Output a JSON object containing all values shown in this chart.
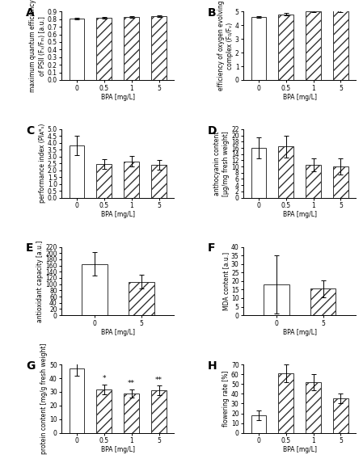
{
  "panels": {
    "A": {
      "label": "A",
      "categories": [
        "0",
        "0.5",
        "1",
        "5"
      ],
      "values": [
        0.81,
        0.82,
        0.83,
        0.84
      ],
      "errors": [
        0.01,
        0.01,
        0.01,
        0.01
      ],
      "bar_styles": [
        "white",
        "hatch",
        "hatch",
        "hatch"
      ],
      "ylim": [
        0.0,
        0.9
      ],
      "yticks": [
        0.0,
        0.1,
        0.2,
        0.3,
        0.4,
        0.5,
        0.6,
        0.7,
        0.8,
        0.9
      ],
      "yticklabels": [
        "0.0",
        "0.1",
        "0.2",
        "0.3",
        "0.4",
        "0.5",
        "0.6",
        "0.7",
        "0.8",
        "0.9"
      ],
      "ylabel": "maximum quantum efficiency\nof PSII (Fᵥ/Fₘ) [a.u.]",
      "xlabel": "BPA [mg/L]",
      "significance": [
        "",
        "",
        "",
        ""
      ]
    },
    "B": {
      "label": "B",
      "categories": [
        "0",
        "0.5",
        "1",
        "5"
      ],
      "values": [
        4.6,
        4.8,
        5.0,
        5.05
      ],
      "errors": [
        0.05,
        0.1,
        0.05,
        0.1
      ],
      "bar_styles": [
        "white",
        "hatch",
        "hatch",
        "hatch"
      ],
      "ylim": [
        0,
        5
      ],
      "yticks": [
        0,
        1,
        2,
        3,
        4,
        5
      ],
      "yticklabels": [
        "0",
        "1",
        "2",
        "3",
        "4",
        "5"
      ],
      "ylabel": "efficiency of oxygen evolving\ncomplex (F₀/Fᵥ)",
      "xlabel": "BPA [mg/L]",
      "significance": [
        "",
        "",
        "",
        ""
      ]
    },
    "C": {
      "label": "C",
      "categories": [
        "0",
        "0.5",
        "1",
        "5"
      ],
      "values": [
        3.8,
        2.45,
        2.65,
        2.4
      ],
      "errors": [
        0.7,
        0.35,
        0.4,
        0.35
      ],
      "bar_styles": [
        "white",
        "hatch",
        "hatch",
        "hatch"
      ],
      "ylim": [
        0.0,
        5.0
      ],
      "yticks": [
        0.0,
        0.5,
        1.0,
        1.5,
        2.0,
        2.5,
        3.0,
        3.5,
        4.0,
        4.5,
        5.0
      ],
      "yticklabels": [
        "0.0",
        "0.5",
        "1.0",
        "1.5",
        "2.0",
        "2.5",
        "3.0",
        "3.5",
        "4.0",
        "4.5",
        "5.0"
      ],
      "ylabel": "performance index (PIᴀᴮₛ)",
      "xlabel": "BPA [mg/L]",
      "significance": [
        "",
        "",
        "",
        ""
      ]
    },
    "D": {
      "label": "D",
      "categories": [
        "0",
        "0.5",
        "1",
        "5"
      ],
      "values": [
        16.0,
        16.5,
        10.5,
        10.0
      ],
      "errors": [
        3.5,
        3.5,
        2.0,
        2.5
      ],
      "bar_styles": [
        "white",
        "hatch",
        "hatch",
        "hatch"
      ],
      "ylim": [
        0,
        22
      ],
      "yticks": [
        0,
        2,
        4,
        6,
        8,
        10,
        12,
        14,
        16,
        18,
        20,
        22
      ],
      "yticklabels": [
        "0",
        "2",
        "4",
        "6",
        "8",
        "10",
        "12",
        "14",
        "16",
        "18",
        "20",
        "22"
      ],
      "ylabel": "anthocyanin content\n[μg/mg fresh weight]",
      "xlabel": "BPA [mg/L]",
      "significance": [
        "",
        "",
        "",
        ""
      ]
    },
    "E": {
      "label": "E",
      "categories": [
        "0",
        "5"
      ],
      "values": [
        165.0,
        108.0
      ],
      "errors": [
        38.0,
        22.0
      ],
      "bar_styles": [
        "white",
        "hatch"
      ],
      "ylim": [
        0,
        220
      ],
      "yticks": [
        0,
        20,
        40,
        60,
        80,
        100,
        120,
        140,
        160,
        180,
        200,
        220
      ],
      "yticklabels": [
        "0",
        "20",
        "40",
        "60",
        "80",
        "100",
        "120",
        "140",
        "160",
        "180",
        "200",
        "220"
      ],
      "ylabel": "antioxidant capacity [a.u.]",
      "xlabel": "BPA [mg/L]",
      "significance": [
        "",
        ""
      ]
    },
    "F": {
      "label": "F",
      "categories": [
        "0",
        "5"
      ],
      "values": [
        18.0,
        15.5
      ],
      "errors": [
        17.0,
        5.0
      ],
      "bar_styles": [
        "white",
        "hatch"
      ],
      "ylim": [
        0,
        40
      ],
      "yticks": [
        0,
        5,
        10,
        15,
        20,
        25,
        30,
        35,
        40
      ],
      "yticklabels": [
        "0",
        "5",
        "10",
        "15",
        "20",
        "25",
        "30",
        "35",
        "40"
      ],
      "ylabel": "MDA content [a.u.]",
      "xlabel": "BPA [mg/L]",
      "significance": [
        "",
        ""
      ]
    },
    "G": {
      "label": "G",
      "categories": [
        "0",
        "0.5",
        "1",
        "5"
      ],
      "values": [
        47.0,
        32.0,
        29.0,
        31.0
      ],
      "errors": [
        5.0,
        3.5,
        3.0,
        3.5
      ],
      "bar_styles": [
        "white",
        "hatch",
        "hatch",
        "hatch"
      ],
      "ylim": [
        0,
        50
      ],
      "yticks": [
        0,
        10,
        20,
        30,
        40,
        50
      ],
      "yticklabels": [
        "0",
        "10",
        "20",
        "30",
        "40",
        "50"
      ],
      "ylabel": "protein content [mg/g fresh weight]",
      "xlabel": "BPA [mg/L]",
      "significance": [
        "",
        "*",
        "**",
        "**"
      ]
    },
    "H": {
      "label": "H",
      "categories": [
        "0",
        "0.5",
        "1",
        "5"
      ],
      "values": [
        18.0,
        61.0,
        52.0,
        35.0
      ],
      "errors": [
        5.0,
        9.0,
        8.0,
        5.0
      ],
      "bar_styles": [
        "white",
        "hatch",
        "hatch",
        "hatch"
      ],
      "ylim": [
        0,
        70
      ],
      "yticks": [
        0,
        10,
        20,
        30,
        40,
        50,
        60,
        70
      ],
      "yticklabels": [
        "0",
        "10",
        "20",
        "30",
        "40",
        "50",
        "60",
        "70"
      ],
      "ylabel": "flowering rate [%]",
      "xlabel": "BPA [mg/L]",
      "significance": [
        "",
        "",
        "",
        ""
      ]
    }
  },
  "hatch_pattern": "///",
  "bar_edgecolor": "#333333",
  "bar_width": 0.55,
  "panel_label_fontsize": 10,
  "axis_label_fontsize": 5.5,
  "tick_fontsize": 5.5,
  "sig_fontsize": 6.5,
  "figure_width": 4.49,
  "figure_height": 5.73
}
